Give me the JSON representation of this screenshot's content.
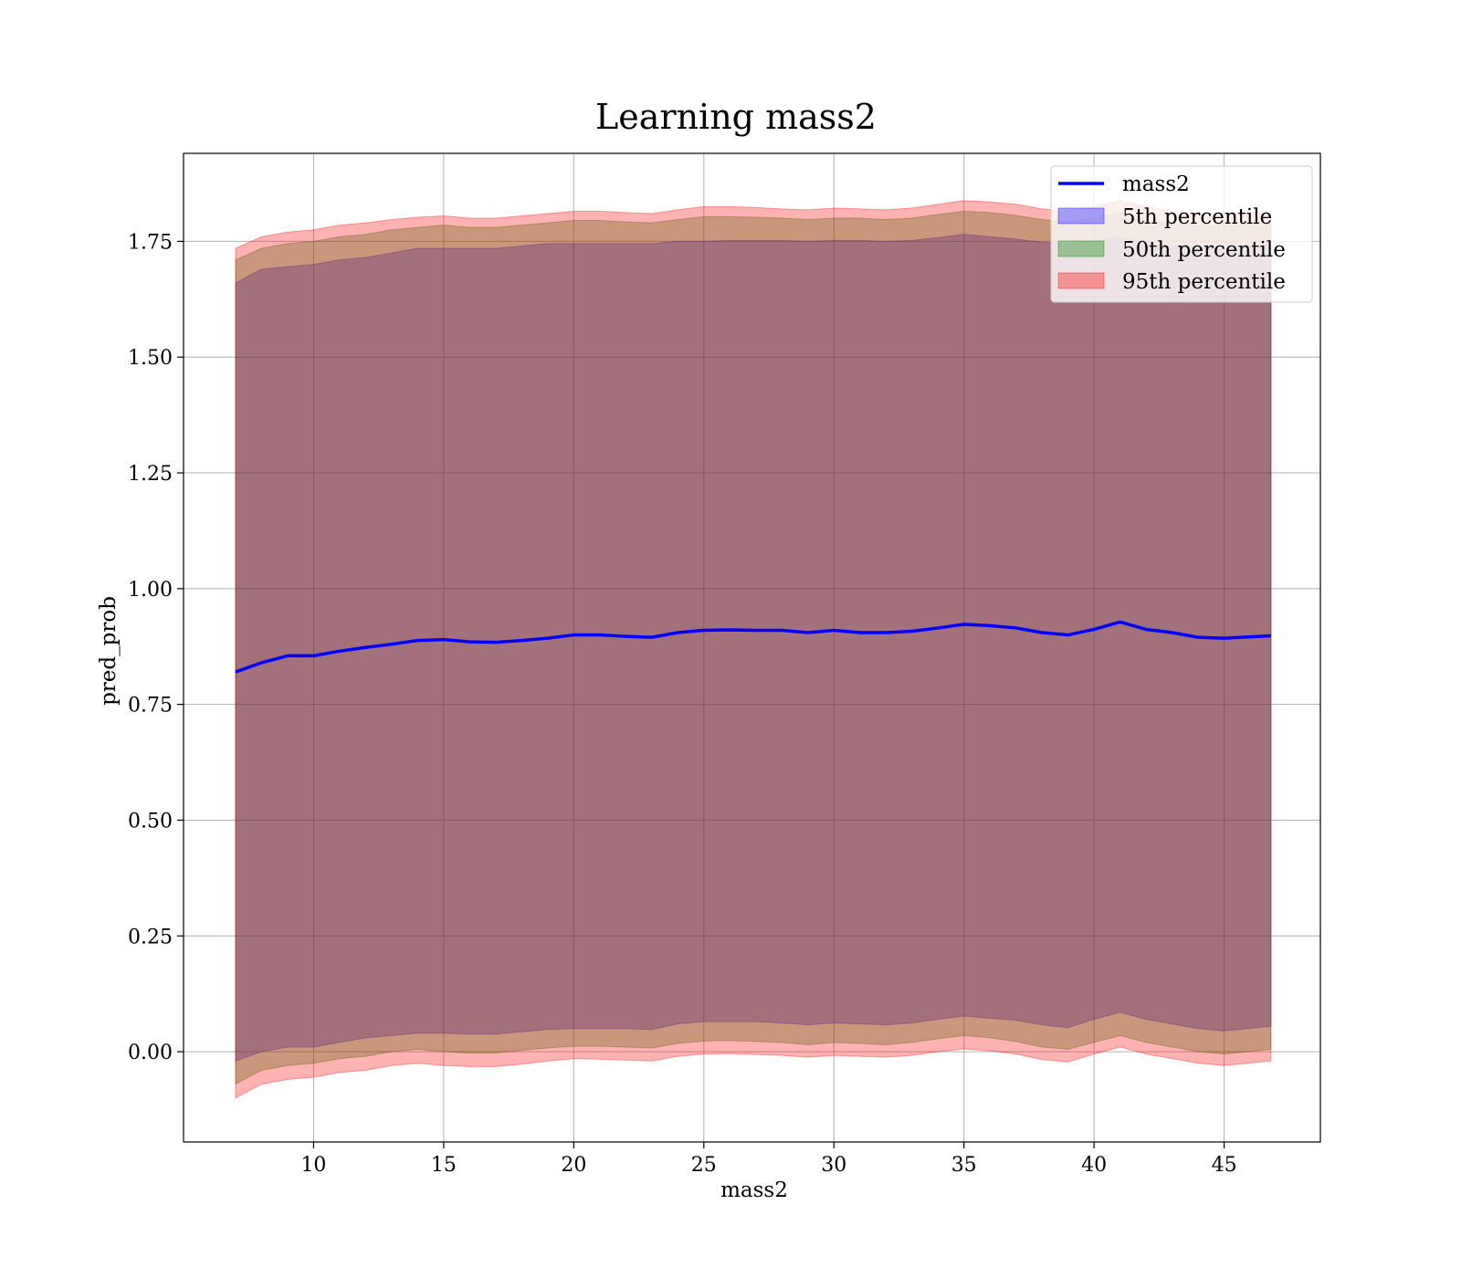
{
  "chart_data": {
    "type": "line",
    "title": "Learning mass2",
    "xlabel": "mass2",
    "ylabel": "pred_prob",
    "xlim": [
      5.0,
      48.7
    ],
    "ylim": [
      -0.195,
      1.94
    ],
    "xticks": [
      10,
      15,
      20,
      25,
      30,
      35,
      40,
      45
    ],
    "yticks": [
      0.0,
      0.25,
      0.5,
      0.75,
      1.0,
      1.25,
      1.5,
      1.75
    ],
    "ytick_labels": [
      "0.00",
      "0.25",
      "0.50",
      "0.75",
      "1.00",
      "1.25",
      "1.50",
      "1.75"
    ],
    "grid": true,
    "legend_position": "top-right",
    "legend": [
      "mass2",
      "5th percentile",
      "50th percentile",
      "95th percentile"
    ],
    "colors": {
      "line": "#0000ff",
      "band_5": "#0000ff",
      "band_50": "#008000",
      "band_95": "#ff0000"
    },
    "x": [
      7.0,
      8.0,
      9.0,
      10.0,
      11.0,
      12.0,
      13.0,
      14.0,
      15.0,
      16.0,
      17.0,
      18.0,
      19.0,
      20.0,
      21.0,
      22.0,
      23.0,
      24.0,
      25.0,
      26.0,
      27.0,
      28.0,
      29.0,
      30.0,
      31.0,
      32.0,
      33.0,
      34.0,
      35.0,
      36.0,
      37.0,
      38.0,
      39.0,
      40.0,
      41.0,
      42.0,
      43.0,
      44.0,
      45.0,
      46.8
    ],
    "series": [
      {
        "name": "mass2",
        "values": [
          0.82,
          0.84,
          0.855,
          0.855,
          0.865,
          0.873,
          0.88,
          0.888,
          0.89,
          0.885,
          0.884,
          0.888,
          0.893,
          0.9,
          0.9,
          0.897,
          0.895,
          0.905,
          0.91,
          0.911,
          0.91,
          0.91,
          0.905,
          0.91,
          0.905,
          0.905,
          0.908,
          0.915,
          0.923,
          0.92,
          0.915,
          0.905,
          0.9,
          0.912,
          0.928,
          0.912,
          0.905,
          0.895,
          0.893,
          0.898
        ]
      }
    ],
    "bands": [
      {
        "name": "5th percentile",
        "lower": [
          -0.02,
          0.0,
          0.01,
          0.01,
          0.02,
          0.03,
          0.035,
          0.04,
          0.04,
          0.038,
          0.038,
          0.043,
          0.048,
          0.05,
          0.05,
          0.05,
          0.048,
          0.06,
          0.065,
          0.065,
          0.065,
          0.062,
          0.058,
          0.062,
          0.06,
          0.058,
          0.062,
          0.07,
          0.077,
          0.072,
          0.068,
          0.058,
          0.052,
          0.07,
          0.085,
          0.07,
          0.06,
          0.05,
          0.045,
          0.055
        ],
        "upper": [
          1.66,
          1.69,
          1.695,
          1.7,
          1.71,
          1.715,
          1.725,
          1.735,
          1.735,
          1.735,
          1.735,
          1.74,
          1.745,
          1.745,
          1.745,
          1.745,
          1.745,
          1.75,
          1.75,
          1.752,
          1.752,
          1.752,
          1.75,
          1.752,
          1.752,
          1.75,
          1.752,
          1.758,
          1.765,
          1.76,
          1.755,
          1.748,
          1.745,
          1.75,
          1.76,
          1.745,
          1.74,
          1.735,
          1.735,
          1.74
        ]
      },
      {
        "name": "50th percentile",
        "lower": [
          -0.07,
          -0.04,
          -0.03,
          -0.025,
          -0.015,
          -0.01,
          0.0,
          0.005,
          0.0,
          -0.003,
          -0.003,
          0.003,
          0.008,
          0.012,
          0.012,
          0.01,
          0.008,
          0.018,
          0.023,
          0.024,
          0.022,
          0.02,
          0.015,
          0.02,
          0.018,
          0.015,
          0.02,
          0.028,
          0.035,
          0.03,
          0.022,
          0.01,
          0.005,
          0.02,
          0.035,
          0.02,
          0.01,
          0.0,
          -0.005,
          0.005
        ],
        "upper": [
          1.71,
          1.735,
          1.745,
          1.75,
          1.76,
          1.765,
          1.775,
          1.78,
          1.785,
          1.78,
          1.78,
          1.785,
          1.79,
          1.795,
          1.795,
          1.792,
          1.79,
          1.797,
          1.803,
          1.803,
          1.802,
          1.8,
          1.797,
          1.8,
          1.8,
          1.797,
          1.8,
          1.808,
          1.815,
          1.812,
          1.806,
          1.797,
          1.792,
          1.8,
          1.812,
          1.797,
          1.79,
          1.785,
          1.785,
          1.79
        ]
      },
      {
        "name": "95th percentile",
        "lower": [
          -0.1,
          -0.07,
          -0.06,
          -0.055,
          -0.045,
          -0.04,
          -0.03,
          -0.025,
          -0.03,
          -0.032,
          -0.032,
          -0.027,
          -0.02,
          -0.015,
          -0.016,
          -0.018,
          -0.02,
          -0.01,
          -0.005,
          -0.004,
          -0.006,
          -0.008,
          -0.012,
          -0.008,
          -0.01,
          -0.012,
          -0.008,
          0.0,
          0.006,
          0.002,
          -0.005,
          -0.017,
          -0.022,
          -0.005,
          0.01,
          -0.005,
          -0.015,
          -0.025,
          -0.03,
          -0.02
        ],
        "upper": [
          1.735,
          1.76,
          1.77,
          1.775,
          1.785,
          1.79,
          1.797,
          1.802,
          1.805,
          1.8,
          1.8,
          1.805,
          1.81,
          1.815,
          1.815,
          1.812,
          1.81,
          1.818,
          1.825,
          1.825,
          1.823,
          1.82,
          1.818,
          1.822,
          1.82,
          1.818,
          1.822,
          1.83,
          1.838,
          1.835,
          1.83,
          1.82,
          1.815,
          1.825,
          1.838,
          1.825,
          1.815,
          1.81,
          1.81,
          1.815
        ]
      }
    ]
  }
}
